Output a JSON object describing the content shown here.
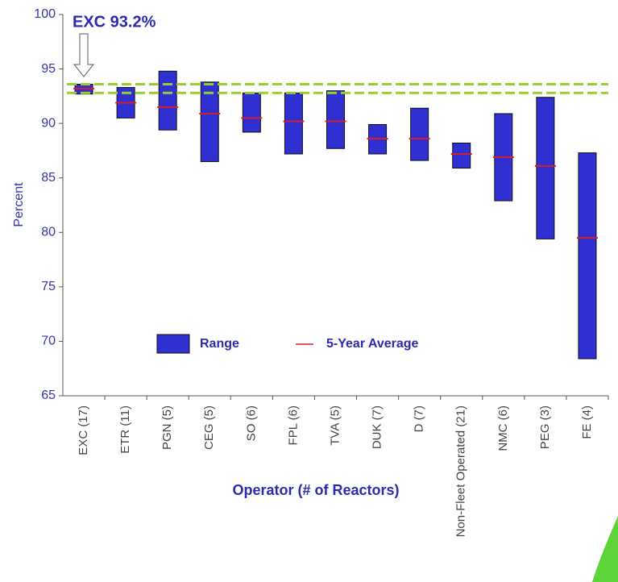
{
  "chart_data": {
    "type": "range",
    "annotation": "EXC 93.2%",
    "ylabel": "Percent",
    "xlabel": "Operator (# of Reactors)",
    "categories": [
      "EXC (17)",
      "ETR (11)",
      "PGN (5)",
      "CEG (5)",
      "SO (6)",
      "FPL (6)",
      "TVA (5)",
      "DUK (7)",
      "D (7)",
      "Non-Fleet Operated (21)",
      "NMC (6)",
      "PEG (3)",
      "FE (4)"
    ],
    "series": [
      {
        "name": "Range",
        "color": "#2f2fd2",
        "low": [
          92.7,
          90.5,
          89.4,
          86.5,
          89.2,
          87.2,
          87.7,
          87.2,
          86.6,
          85.9,
          82.9,
          79.4,
          68.4
        ],
        "high": [
          93.6,
          93.3,
          94.8,
          93.8,
          92.8,
          92.8,
          93.0,
          89.9,
          91.4,
          88.2,
          90.9,
          92.4,
          87.3
        ]
      },
      {
        "name": "5-Year Average",
        "color": "#d0202a",
        "values": [
          93.2,
          91.9,
          91.5,
          90.9,
          90.5,
          90.2,
          90.2,
          88.6,
          88.6,
          87.2,
          86.9,
          86.1,
          79.5
        ]
      }
    ],
    "reference_lines": [
      93.6,
      92.8
    ],
    "reference_color": "#9acd32",
    "ylim": [
      65,
      100
    ],
    "yticks": [
      65,
      70,
      75,
      80,
      85,
      90,
      95,
      100
    ]
  }
}
